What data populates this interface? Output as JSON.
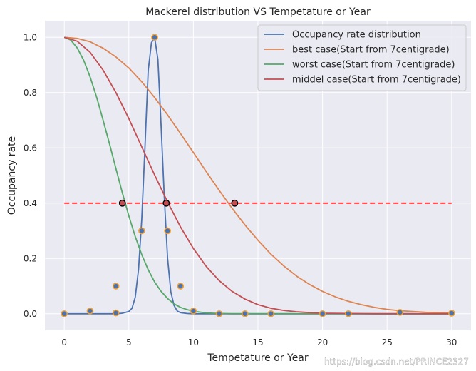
{
  "chart_data": {
    "type": "line",
    "title": "Mackerel distribution VS Tempetature or Year",
    "xlabel": "Tempetature or Year",
    "ylabel": "Occupancy rate",
    "xlim": [
      -1.5,
      31.5
    ],
    "ylim": [
      -0.06,
      1.06
    ],
    "x_ticks": [
      0,
      5,
      10,
      15,
      20,
      25,
      30
    ],
    "y_ticks": [
      0.0,
      0.2,
      0.4,
      0.6,
      0.8,
      1.0
    ],
    "x_tick_labels": [
      "0",
      "5",
      "10",
      "15",
      "20",
      "25",
      "30"
    ],
    "y_tick_labels": [
      "0.0",
      "0.2",
      "0.4",
      "0.6",
      "0.8",
      "1.0"
    ],
    "grid": true,
    "legend_position": "top-right",
    "series": [
      {
        "name": "Occupancy rate distribution",
        "color": "#4c72b0",
        "x": [
          0,
          4,
          4.5,
          5,
          5.25,
          5.5,
          5.75,
          6,
          6.25,
          6.5,
          6.75,
          7,
          7.25,
          7.5,
          7.75,
          8,
          8.25,
          8.5,
          8.75,
          9,
          9.5,
          10,
          12,
          14,
          16,
          20,
          22,
          26,
          30
        ],
        "y": [
          0,
          0,
          0.002,
          0.008,
          0.02,
          0.06,
          0.16,
          0.34,
          0.6,
          0.88,
          0.98,
          1.0,
          0.92,
          0.68,
          0.42,
          0.2,
          0.08,
          0.03,
          0.01,
          0.004,
          0.001,
          0,
          0,
          0,
          0,
          0,
          0,
          0,
          0
        ]
      },
      {
        "name": "best case(Start from 7centigrade)",
        "color": "#dd8452",
        "x": [
          0,
          1,
          2,
          3,
          4,
          5,
          6,
          7,
          8,
          9,
          10,
          11,
          12,
          13,
          14,
          15,
          16,
          17,
          18,
          19,
          20,
          21,
          22,
          23,
          24,
          25,
          26,
          27,
          28,
          29,
          30
        ],
        "y": [
          1.0,
          0.996,
          0.984,
          0.961,
          0.929,
          0.889,
          0.839,
          0.782,
          0.719,
          0.652,
          0.583,
          0.514,
          0.446,
          0.381,
          0.321,
          0.266,
          0.216,
          0.173,
          0.136,
          0.106,
          0.081,
          0.061,
          0.045,
          0.033,
          0.023,
          0.016,
          0.011,
          0.008,
          0.005,
          0.004,
          0.003
        ]
      },
      {
        "name": "worst case(Start from 7centigrade)",
        "color": "#55a868",
        "x": [
          0,
          0.5,
          1,
          1.5,
          2,
          2.5,
          3,
          3.5,
          4,
          4.5,
          5,
          5.5,
          6,
          6.5,
          7,
          7.5,
          8,
          8.5,
          9,
          9.5,
          10,
          11,
          12,
          13,
          14,
          16,
          20,
          25,
          30
        ],
        "y": [
          1.0,
          0.99,
          0.962,
          0.917,
          0.857,
          0.784,
          0.702,
          0.615,
          0.525,
          0.437,
          0.354,
          0.279,
          0.214,
          0.159,
          0.115,
          0.081,
          0.055,
          0.036,
          0.023,
          0.015,
          0.009,
          0.003,
          0.001,
          0,
          0,
          0,
          0,
          0,
          0
        ]
      },
      {
        "name": "middel case(Start from 7centigrade)",
        "color": "#c44e52",
        "x": [
          0,
          1,
          2,
          3,
          4,
          5,
          6,
          7,
          8,
          9,
          10,
          11,
          12,
          13,
          14,
          15,
          16,
          17,
          18,
          19,
          20,
          22,
          24,
          26,
          28,
          30
        ],
        "y": [
          1.0,
          0.986,
          0.946,
          0.882,
          0.8,
          0.706,
          0.604,
          0.502,
          0.404,
          0.314,
          0.236,
          0.171,
          0.12,
          0.081,
          0.053,
          0.033,
          0.02,
          0.012,
          0.007,
          0.004,
          0.002,
          0.001,
          0,
          0,
          0,
          0
        ]
      }
    ],
    "threshold_line": {
      "y": 0.4,
      "x_range": [
        0,
        30
      ],
      "color": "#ff0000"
    },
    "intersection_points": [
      {
        "x": 4.5,
        "y": 0.4
      },
      {
        "x": 7.9,
        "y": 0.4
      },
      {
        "x": 13.2,
        "y": 0.4
      }
    ],
    "scatter_points": [
      {
        "x": 0,
        "y": 0
      },
      {
        "x": 2,
        "y": 0.01
      },
      {
        "x": 4,
        "y": 0.1
      },
      {
        "x": 4,
        "y": 0.003
      },
      {
        "x": 6,
        "y": 0.3
      },
      {
        "x": 7,
        "y": 1.0
      },
      {
        "x": 8,
        "y": 0.3
      },
      {
        "x": 9,
        "y": 0.1
      },
      {
        "x": 10,
        "y": 0.01
      },
      {
        "x": 12,
        "y": 0
      },
      {
        "x": 14,
        "y": 0
      },
      {
        "x": 16,
        "y": 0
      },
      {
        "x": 20,
        "y": 0
      },
      {
        "x": 22,
        "y": 0
      },
      {
        "x": 26,
        "y": 0.005
      },
      {
        "x": 30,
        "y": 0.002
      }
    ],
    "scatter_fill_color": "#4c72b0",
    "scatter_edge_color": "#f0a030",
    "intersection_fill_color": "#c44e52",
    "intersection_edge_color": "#000000"
  },
  "watermark": "https://blog.csdn.net/PRINCE2327"
}
